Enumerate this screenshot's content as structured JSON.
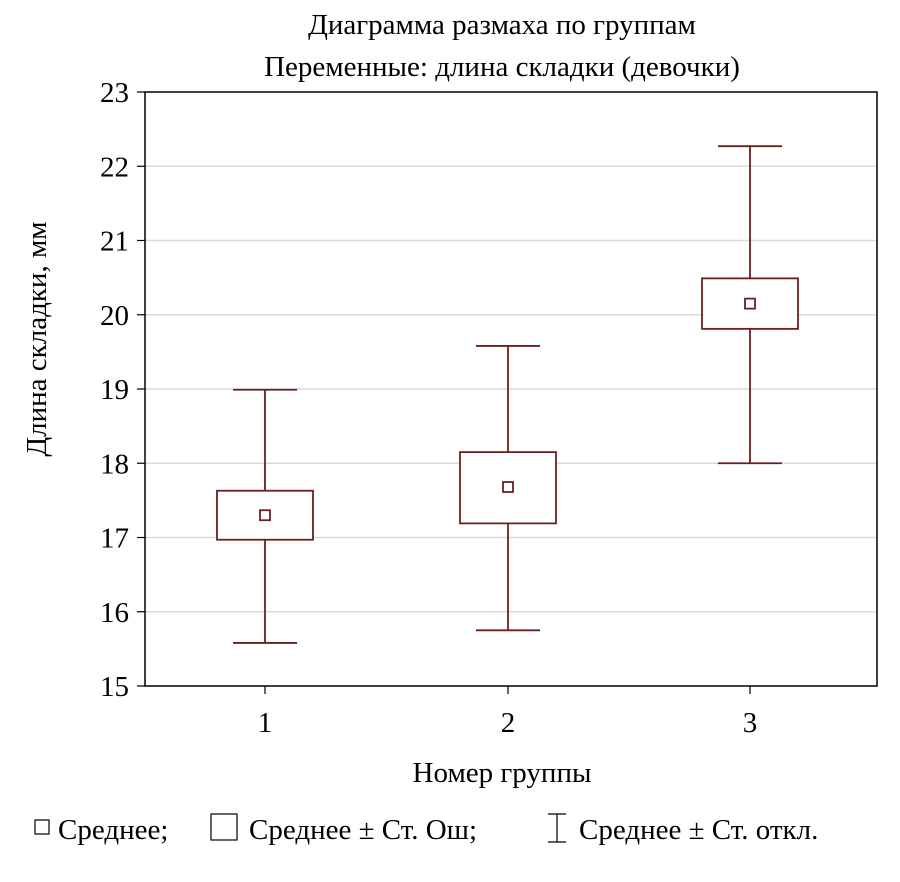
{
  "chart_data": {
    "type": "box",
    "title": "Диаграмма размаха по группам",
    "subtitle": "Переменные: длина складки (девочки)",
    "xlabel": "Номер группы",
    "ylabel": "Длина складки, мм",
    "categories": [
      "1",
      "2",
      "3"
    ],
    "ylim": [
      15,
      23
    ],
    "yticks": [
      15,
      16,
      17,
      18,
      19,
      20,
      21,
      22,
      23
    ],
    "grid": true,
    "legend_placement": "bottom",
    "legend": [
      {
        "symbol": "□",
        "label": "Среднее;"
      },
      {
        "symbol": "box",
        "label": "Среднее ± Ст. Ош;"
      },
      {
        "symbol": "whisker",
        "label": "Среднее ± Ст. откл."
      }
    ],
    "series": [
      {
        "category": "1",
        "mean": 17.3,
        "se_low": 16.97,
        "se_high": 17.63,
        "sd_low": 15.58,
        "sd_high": 18.99
      },
      {
        "category": "2",
        "mean": 17.68,
        "se_low": 17.19,
        "se_high": 18.15,
        "sd_low": 15.75,
        "sd_high": 19.58
      },
      {
        "category": "3",
        "mean": 20.15,
        "se_low": 19.81,
        "se_high": 20.49,
        "sd_low": 18.0,
        "sd_high": 22.27
      }
    ],
    "colors": {
      "box": "#6b1f1f",
      "grid": "#d9d9d9",
      "frame": "#000000"
    }
  }
}
